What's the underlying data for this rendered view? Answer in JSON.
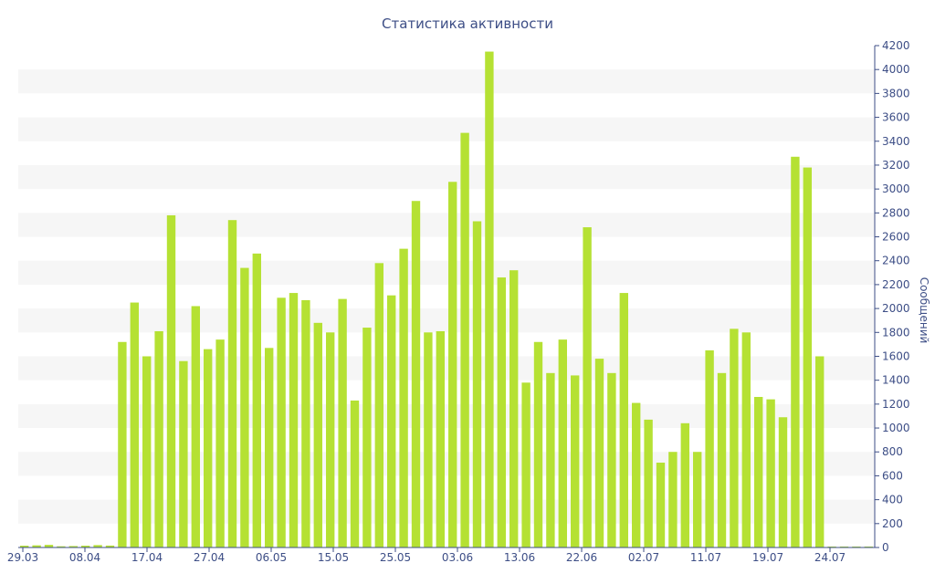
{
  "chart_data": {
    "type": "bar",
    "title": "Статистика активности",
    "xlabel": "",
    "ylabel": "Сообщений",
    "ylim": [
      0,
      4200
    ],
    "y_ticks": [
      0,
      200,
      400,
      600,
      800,
      1000,
      1200,
      1400,
      1600,
      1800,
      2000,
      2200,
      2400,
      2600,
      2800,
      3000,
      3200,
      3400,
      3600,
      3800,
      4000,
      4200
    ],
    "y_axis_side": "right",
    "x_tick_labels": [
      "29.03",
      "08.04",
      "17.04",
      "27.04",
      "06.05",
      "15.05",
      "25.05",
      "03.06",
      "13.06",
      "22.06",
      "02.07",
      "11.07",
      "19.07",
      "24.07"
    ],
    "grid": "alternating horizontal bands",
    "colors": {
      "bar": "#b5e133",
      "band": "#f6f6f6",
      "axis": "#3d4e86",
      "text": "#3d4e86"
    },
    "values": [
      15,
      18,
      22,
      10,
      12,
      15,
      20,
      16,
      1720,
      2050,
      1600,
      1810,
      2780,
      1560,
      2020,
      1660,
      1740,
      2740,
      2340,
      2460,
      1670,
      2090,
      2130,
      2070,
      1880,
      1800,
      2080,
      1230,
      1840,
      2380,
      2110,
      2500,
      2900,
      1800,
      1810,
      3060,
      3470,
      2730,
      4150,
      2260,
      2320,
      1380,
      1720,
      1460,
      1740,
      1440,
      2680,
      1580,
      1460,
      2130,
      1210,
      1070,
      710,
      800,
      1040,
      800,
      1650,
      1460,
      1830,
      1800,
      1260,
      1240,
      1090,
      3270,
      3180,
      1600,
      8,
      8,
      8,
      8
    ]
  }
}
